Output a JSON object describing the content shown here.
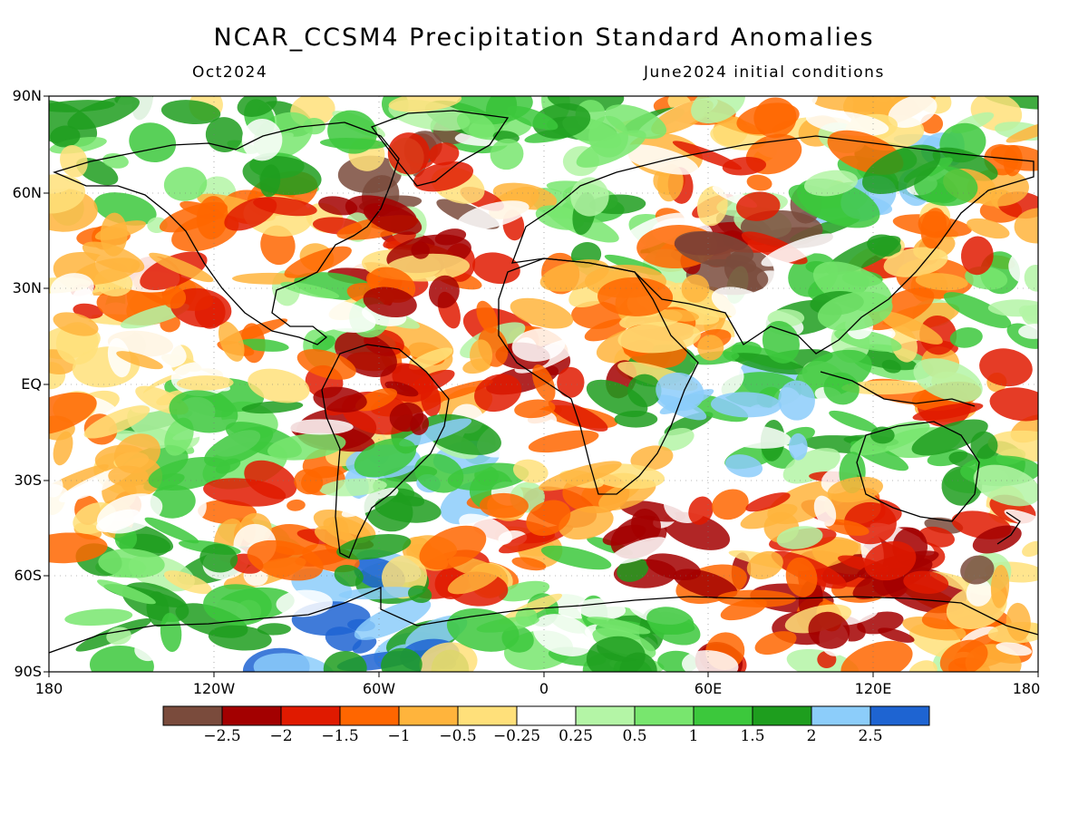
{
  "title": "NCAR_CCSM4 Precipitation Standard Anomalies",
  "subtitle_left": "Oct2024",
  "subtitle_right": "June2024 initial conditions",
  "map": {
    "projection": "cylindrical equidistant",
    "lon_range": [
      -180,
      180
    ],
    "lat_range": [
      -90,
      90
    ],
    "variable": "precipitation standard anomaly"
  },
  "lat_labels": [
    "90N",
    "60N",
    "30N",
    "EQ",
    "30S",
    "60S",
    "90S"
  ],
  "lon_labels": [
    "180",
    "120W",
    "60W",
    "0",
    "60E",
    "120E",
    "180"
  ],
  "colorbar": {
    "labels": [
      "−2.5",
      "−2",
      "−1.5",
      "−1",
      "−0.5",
      "−0.25",
      "0.25",
      "0.5",
      "1",
      "1.5",
      "2",
      "2.5"
    ],
    "colors": [
      "#7a4b3c",
      "#a30000",
      "#e01a00",
      "#ff6600",
      "#ffb43c",
      "#ffe07a",
      "#ffffff",
      "#b4f5a6",
      "#78e66e",
      "#3cc83c",
      "#1e9e1e",
      "#8ccdfa",
      "#1e64d2"
    ]
  }
}
